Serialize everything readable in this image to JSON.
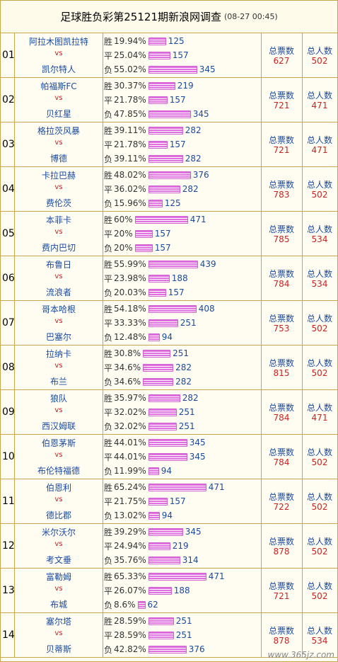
{
  "header": {
    "title": "足球胜负彩第25121期新浪网调查",
    "time": "(08-27 00:45)"
  },
  "labels": {
    "win": "胜",
    "draw": "平",
    "lose": "负",
    "vs": "vs",
    "total_votes": "总票数",
    "total_people": "总人数"
  },
  "rows": [
    {
      "num": "01",
      "home": "阿拉木图凯拉特",
      "away": "凯尔特人",
      "win": {
        "pct": "19.94%",
        "cnt": "125"
      },
      "draw": {
        "pct": "25.04%",
        "cnt": "157"
      },
      "lose": {
        "pct": "55.02%",
        "cnt": "345"
      },
      "votes": "627",
      "people": "502"
    },
    {
      "num": "02",
      "home": "帕福斯FC",
      "away": "贝红星",
      "win": {
        "pct": "30.37%",
        "cnt": "219"
      },
      "draw": {
        "pct": "21.78%",
        "cnt": "157"
      },
      "lose": {
        "pct": "47.85%",
        "cnt": "345"
      },
      "votes": "721",
      "people": "471"
    },
    {
      "num": "03",
      "home": "格拉茨风暴",
      "away": "博德",
      "win": {
        "pct": "39.11%",
        "cnt": "282"
      },
      "draw": {
        "pct": "21.78%",
        "cnt": "157"
      },
      "lose": {
        "pct": "39.11%",
        "cnt": "282"
      },
      "votes": "721",
      "people": "471"
    },
    {
      "num": "04",
      "home": "卡拉巴赫",
      "away": "费伦茨",
      "win": {
        "pct": "48.02%",
        "cnt": "376"
      },
      "draw": {
        "pct": "36.02%",
        "cnt": "282"
      },
      "lose": {
        "pct": "15.96%",
        "cnt": "125"
      },
      "votes": "783",
      "people": "502"
    },
    {
      "num": "05",
      "home": "本菲卡",
      "away": "费内巴切",
      "win": {
        "pct": "60%",
        "cnt": "471"
      },
      "draw": {
        "pct": "20%",
        "cnt": "157"
      },
      "lose": {
        "pct": "20%",
        "cnt": "157"
      },
      "votes": "785",
      "people": "534"
    },
    {
      "num": "06",
      "home": "布鲁日",
      "away": "流浪者",
      "win": {
        "pct": "55.99%",
        "cnt": "439"
      },
      "draw": {
        "pct": "23.98%",
        "cnt": "188"
      },
      "lose": {
        "pct": "20.03%",
        "cnt": "157"
      },
      "votes": "784",
      "people": "534"
    },
    {
      "num": "07",
      "home": "哥本哈根",
      "away": "巴塞尔",
      "win": {
        "pct": "54.18%",
        "cnt": "408"
      },
      "draw": {
        "pct": "33.33%",
        "cnt": "251"
      },
      "lose": {
        "pct": "12.48%",
        "cnt": "94"
      },
      "votes": "753",
      "people": "502"
    },
    {
      "num": "08",
      "home": "拉纳卡",
      "away": "布兰",
      "win": {
        "pct": "30.8%",
        "cnt": "251"
      },
      "draw": {
        "pct": "34.6%",
        "cnt": "282"
      },
      "lose": {
        "pct": "34.6%",
        "cnt": "282"
      },
      "votes": "815",
      "people": "502"
    },
    {
      "num": "09",
      "home": "狼队",
      "away": "西汉姆联",
      "win": {
        "pct": "35.97%",
        "cnt": "282"
      },
      "draw": {
        "pct": "32.02%",
        "cnt": "251"
      },
      "lose": {
        "pct": "32.02%",
        "cnt": "251"
      },
      "votes": "784",
      "people": "471"
    },
    {
      "num": "10",
      "home": "伯恩茅斯",
      "away": "布伦特福德",
      "win": {
        "pct": "44.01%",
        "cnt": "345"
      },
      "draw": {
        "pct": "44.01%",
        "cnt": "345"
      },
      "lose": {
        "pct": "11.99%",
        "cnt": "94"
      },
      "votes": "784",
      "people": "502"
    },
    {
      "num": "11",
      "home": "伯恩利",
      "away": "德比郡",
      "win": {
        "pct": "65.24%",
        "cnt": "471"
      },
      "draw": {
        "pct": "21.75%",
        "cnt": "157"
      },
      "lose": {
        "pct": "13.02%",
        "cnt": "94"
      },
      "votes": "722",
      "people": "502"
    },
    {
      "num": "12",
      "home": "米尔沃尔",
      "away": "考文垂",
      "win": {
        "pct": "39.29%",
        "cnt": "345"
      },
      "draw": {
        "pct": "24.94%",
        "cnt": "219"
      },
      "lose": {
        "pct": "35.76%",
        "cnt": "314"
      },
      "votes": "878",
      "people": "502"
    },
    {
      "num": "13",
      "home": "富勒姆",
      "away": "布城",
      "win": {
        "pct": "65.33%",
        "cnt": "471"
      },
      "draw": {
        "pct": "26.07%",
        "cnt": "188"
      },
      "lose": {
        "pct": "8.6%",
        "cnt": "62"
      },
      "votes": "721",
      "people": "502"
    },
    {
      "num": "14",
      "home": "塞尔塔",
      "away": "贝蒂斯",
      "win": {
        "pct": "28.59%",
        "cnt": "251"
      },
      "draw": {
        "pct": "28.59%",
        "cnt": "251"
      },
      "lose": {
        "pct": "42.82%",
        "cnt": "376"
      },
      "votes": "878",
      "people": "534"
    }
  ],
  "watermark": "www.365jz.com"
}
